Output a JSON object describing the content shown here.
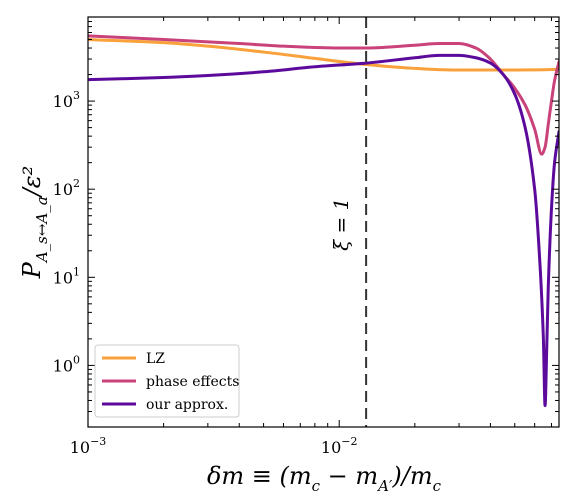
{
  "chart_data": {
    "type": "line",
    "xscale": "log",
    "yscale": "log",
    "xlim": [
      0.001,
      0.075
    ],
    "ylim": [
      0.2,
      9000
    ],
    "xlabel": "δm ≡ (m_c − m_A′)/m_c",
    "ylabel": "P_{A_s↔A_a}/ε²",
    "xticks": [
      {
        "value": 0.001,
        "base": "10",
        "exp": "−3"
      },
      {
        "value": 0.01,
        "base": "10",
        "exp": "−2"
      }
    ],
    "yticks": [
      {
        "value": 1,
        "base": "10",
        "exp": "0"
      },
      {
        "value": 10,
        "base": "10",
        "exp": "1"
      },
      {
        "value": 100,
        "base": "10",
        "exp": "2"
      },
      {
        "value": 1000,
        "base": "10",
        "exp": "3"
      }
    ],
    "grid": false,
    "legend_position": "lower-left",
    "annotation": {
      "text": "ξ = 1",
      "x": 0.0128,
      "style": "dashed-vertical-line"
    },
    "series": [
      {
        "name": "LZ",
        "color": "#f9a13a",
        "x": [
          0.001,
          0.002,
          0.003,
          0.005,
          0.008,
          0.0128,
          0.02,
          0.03,
          0.04,
          0.05,
          0.06,
          0.07,
          0.075
        ],
        "y": [
          5000,
          4600,
          4200,
          3600,
          3050,
          2600,
          2350,
          2250,
          2250,
          2250,
          2260,
          2280,
          2300
        ]
      },
      {
        "name": "phase effects",
        "color": "#c9427a",
        "x": [
          0.001,
          0.002,
          0.004,
          0.006,
          0.01,
          0.0128,
          0.02,
          0.025,
          0.03,
          0.035,
          0.04,
          0.045,
          0.05,
          0.055,
          0.06,
          0.064,
          0.066,
          0.068,
          0.07,
          0.072,
          0.075
        ],
        "y": [
          5500,
          5000,
          4500,
          4200,
          4000,
          4000,
          4300,
          4500,
          4500,
          4000,
          3000,
          2000,
          1400,
          900,
          480,
          250,
          300,
          550,
          1000,
          1700,
          2800
        ]
      },
      {
        "name": "our approx.",
        "color": "#5c0a9c",
        "x": [
          0.001,
          0.002,
          0.003,
          0.005,
          0.008,
          0.0128,
          0.02,
          0.025,
          0.03,
          0.035,
          0.04,
          0.045,
          0.05,
          0.055,
          0.06,
          0.063,
          0.065,
          0.066,
          0.067,
          0.068,
          0.07,
          0.072,
          0.075
        ],
        "y": [
          1750,
          1850,
          1950,
          2150,
          2450,
          2700,
          3100,
          3300,
          3300,
          3100,
          2700,
          2000,
          1200,
          500,
          100,
          14,
          2,
          0.35,
          1.5,
          8,
          60,
          200,
          450
        ]
      }
    ]
  }
}
